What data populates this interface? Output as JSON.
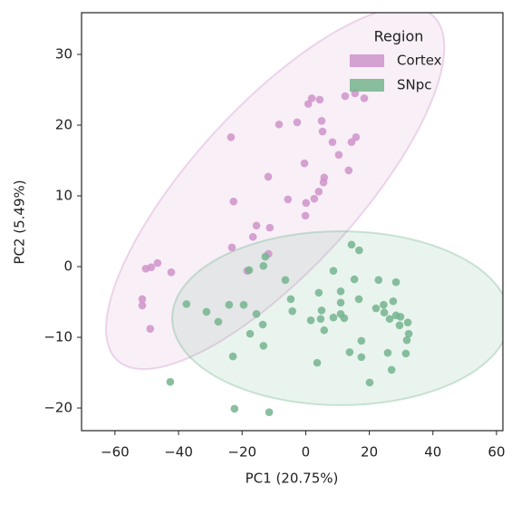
{
  "chart_data": {
    "type": "scatter",
    "xlabel": "PC1 (20.75%)",
    "ylabel": "PC2 (5.49%)",
    "xlim": [
      -70.5,
      62.0
    ],
    "ylim": [
      -23.2,
      35.9
    ],
    "xticks": [
      {
        "value": -60,
        "label": "−60"
      },
      {
        "value": -40,
        "label": "−40"
      },
      {
        "value": -20,
        "label": "−20"
      },
      0,
      20,
      40,
      60
    ],
    "yticks": [
      {
        "value": -20,
        "label": "−20"
      },
      {
        "value": -10,
        "label": "−10"
      },
      0,
      10,
      20,
      30
    ],
    "legend_title": "Region",
    "legend_position": "upper right",
    "series": [
      {
        "name": "Cortex",
        "color": "#cf93c9",
        "x": [
          1.9,
          0.8,
          4.4,
          12.4,
          15.5,
          18.4,
          -8.4,
          -2.7,
          5.0,
          -23.5,
          5.3,
          8.4,
          14.4,
          15.8,
          10.4,
          -0.4,
          13.5,
          -11.8,
          5.8,
          5.6,
          4.1,
          2.7,
          -5.6,
          -22.7,
          0.1,
          -0.1,
          -15.5,
          -11.3,
          -16.6,
          -23.2,
          -46.6,
          -50.3,
          -48.6,
          -42.3,
          -51.4,
          -51.4,
          -48.9,
          -11.7,
          -18.4
        ],
        "y": [
          23.8,
          23.0,
          23.6,
          24.1,
          24.5,
          23.8,
          20.1,
          20.4,
          20.6,
          18.3,
          19.1,
          17.6,
          17.6,
          18.3,
          15.8,
          14.6,
          13.6,
          12.7,
          12.6,
          11.9,
          10.6,
          9.6,
          9.5,
          9.2,
          9.0,
          7.2,
          5.8,
          5.5,
          4.2,
          2.7,
          0.5,
          -0.3,
          -0.1,
          -0.8,
          -4.6,
          -5.5,
          -8.8,
          1.8,
          -0.6
        ],
        "ellipse": {
          "center": [
            -9.6,
            11.1
          ],
          "axes": [
            [
              52.9,
              21.5
            ],
            [
              -5.6,
              13.9
            ]
          ]
        }
      },
      {
        "name": "SNpc",
        "color": "#74b48e",
        "x": [
          14.4,
          16.8,
          8.7,
          -12.7,
          -13.3,
          -17.8,
          -6.4,
          15.3,
          22.9,
          28.4,
          11.0,
          4.1,
          -4.7,
          16.7,
          -37.5,
          -24.1,
          -19.5,
          -15.5,
          -31.2,
          -4.2,
          5.0,
          11.0,
          11.0,
          8.7,
          12.1,
          1.6,
          4.7,
          22.1,
          24.5,
          24.7,
          27.5,
          28.4,
          29.8,
          26.4,
          29.5,
          32.1,
          -27.5,
          -13.5,
          5.8,
          -17.5,
          32.4,
          31.8,
          17.5,
          -13.3,
          13.8,
          25.8,
          31.5,
          17.5,
          -22.9,
          3.6,
          27.0,
          -42.6,
          20.1,
          -22.4,
          -11.5
        ],
        "y": [
          3.1,
          2.3,
          -0.6,
          1.4,
          0.1,
          -0.5,
          -1.9,
          -1.8,
          -1.9,
          -2.2,
          -3.5,
          -3.7,
          -4.6,
          -4.6,
          -5.3,
          -5.4,
          -5.4,
          -6.7,
          -6.4,
          -6.3,
          -6.2,
          -5.1,
          -6.7,
          -7.2,
          -7.3,
          -7.6,
          -7.4,
          -5.9,
          -5.4,
          -6.5,
          -4.9,
          -6.9,
          -7.1,
          -7.4,
          -8.3,
          -7.9,
          -7.8,
          -8.2,
          -9.0,
          -9.5,
          -9.5,
          -10.4,
          -10.5,
          -11.2,
          -12.1,
          -12.2,
          -12.3,
          -12.8,
          -12.7,
          -13.6,
          -14.6,
          -16.3,
          -16.4,
          -20.1,
          -20.6
        ],
        "ellipse": {
          "center": [
            11.0,
            -7.3
          ],
          "axes": [
            [
              53.0,
              0
            ],
            [
              0,
              12.3
            ]
          ]
        }
      }
    ]
  }
}
